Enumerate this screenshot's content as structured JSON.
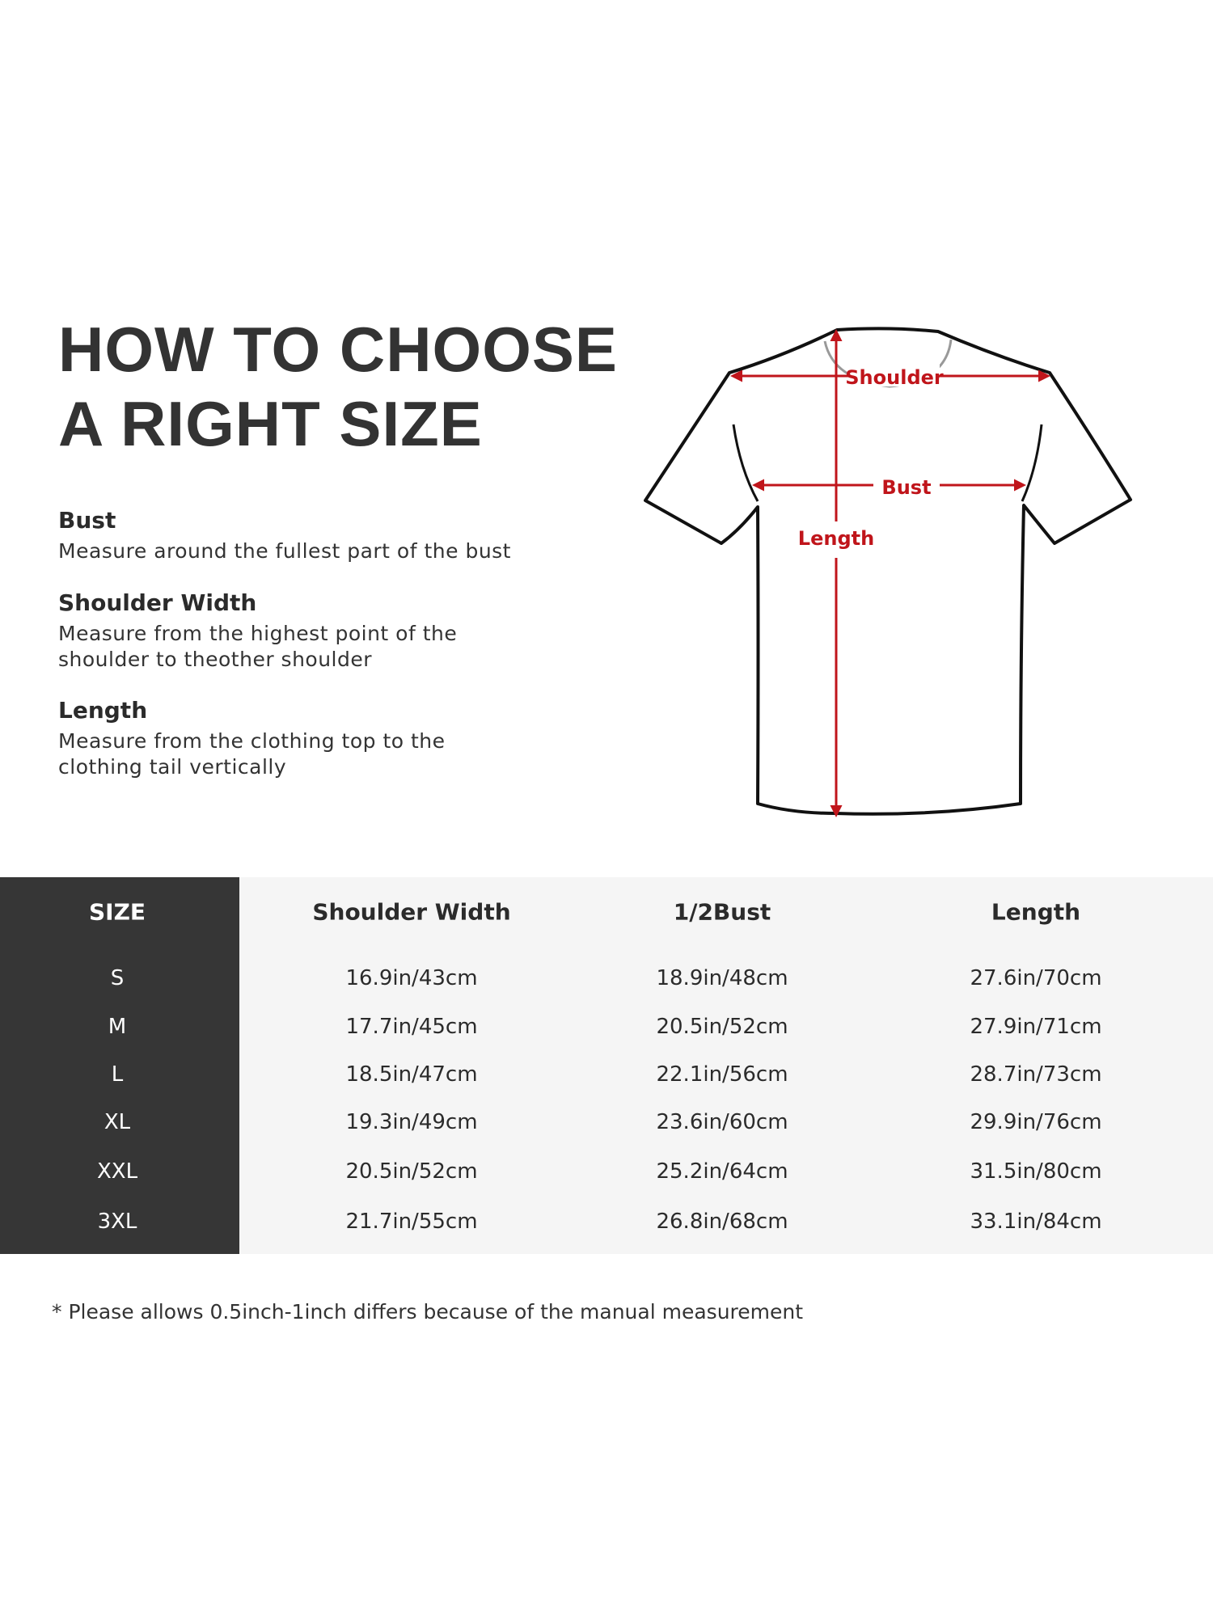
{
  "title": [
    "HOW TO CHOOSE",
    "A RIGHT SIZE"
  ],
  "guide": [
    {
      "heading": "Bust",
      "lines": [
        "Measure around the fullest part of the bust"
      ]
    },
    {
      "heading": "Shoulder Width",
      "lines": [
        "Measure from the highest point of the",
        "shoulder to theother shoulder"
      ]
    },
    {
      "heading": "Length",
      "lines": [
        "Measure from the clothing top to the",
        "clothing tail vertically"
      ]
    }
  ],
  "diagram": {
    "shoulder": "Shoulder",
    "bust": "Bust",
    "length": "Length",
    "accent_color": "#c0151b"
  },
  "table": {
    "headers": [
      "SIZE",
      "Shoulder Width",
      "1/2Bust",
      "Length"
    ],
    "rows": [
      [
        "S",
        "16.9in/43cm",
        "18.9in/48cm",
        "27.6in/70cm"
      ],
      [
        "M",
        "17.7in/45cm",
        "20.5in/52cm",
        "27.9in/71cm"
      ],
      [
        "L",
        "18.5in/47cm",
        "22.1in/56cm",
        "28.7in/73cm"
      ],
      [
        "XL",
        "19.3in/49cm",
        "23.6in/60cm",
        "29.9in/76cm"
      ],
      [
        "XXL",
        "20.5in/52cm",
        "25.2in/64cm",
        "31.5in/80cm"
      ],
      [
        "3XL",
        "21.7in/55cm",
        "26.8in/68cm",
        "33.1in/84cm"
      ]
    ]
  },
  "footnote": "* Please allows 0.5inch-1inch differs because of the  manual measurement"
}
